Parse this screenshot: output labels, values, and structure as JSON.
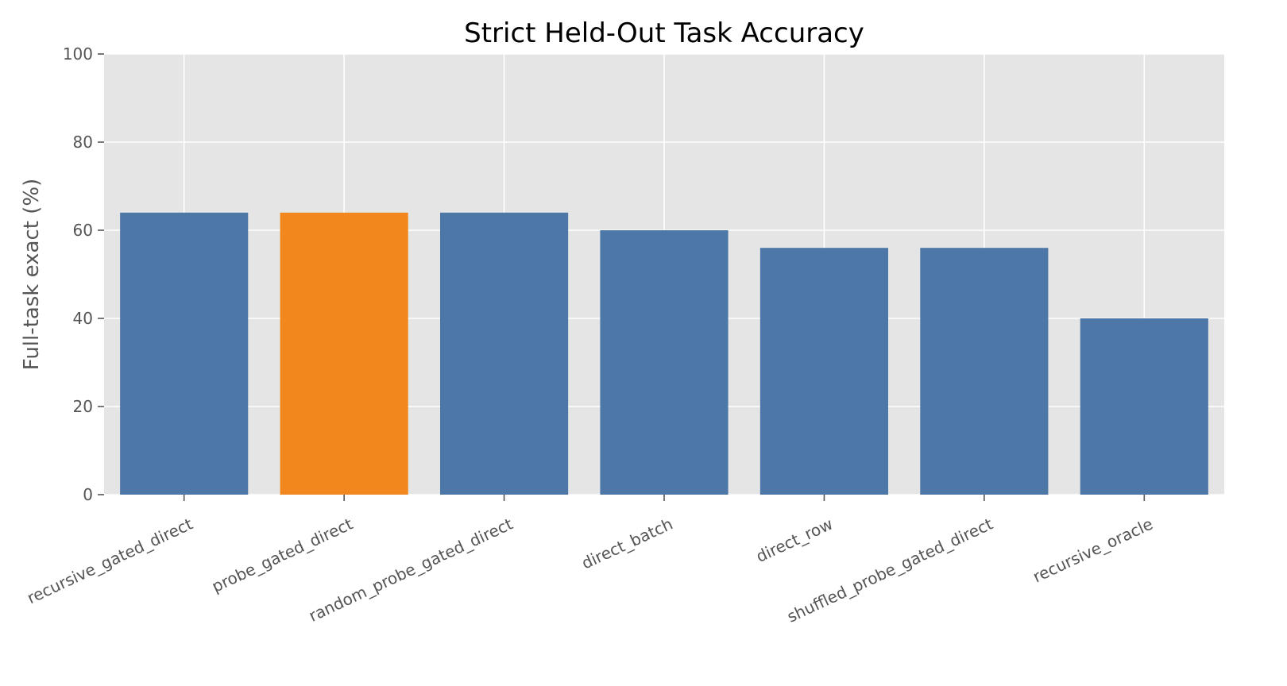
{
  "chart_data": {
    "type": "bar",
    "title": "Strict Held-Out Task Accuracy",
    "xlabel": "",
    "ylabel": "Full-task exact (%)",
    "categories": [
      "recursive_gated_direct",
      "probe_gated_direct",
      "random_probe_gated_direct",
      "direct_batch",
      "direct_row",
      "shuffled_probe_gated_direct",
      "recursive_oracle"
    ],
    "values": [
      64,
      64,
      64,
      60,
      56,
      56,
      40
    ],
    "highlight_category": "probe_gated_direct",
    "ylim": [
      0,
      100
    ],
    "yticks": [
      0,
      20,
      40,
      60,
      80,
      100
    ],
    "grid": true,
    "legend": "none",
    "colors": {
      "default_bar": "#4c77a6",
      "highlight_bar": "#f2881d",
      "plot_background": "#e5e5e5",
      "grid": "#ffffff",
      "text": "#555555",
      "title": "#000000"
    }
  }
}
